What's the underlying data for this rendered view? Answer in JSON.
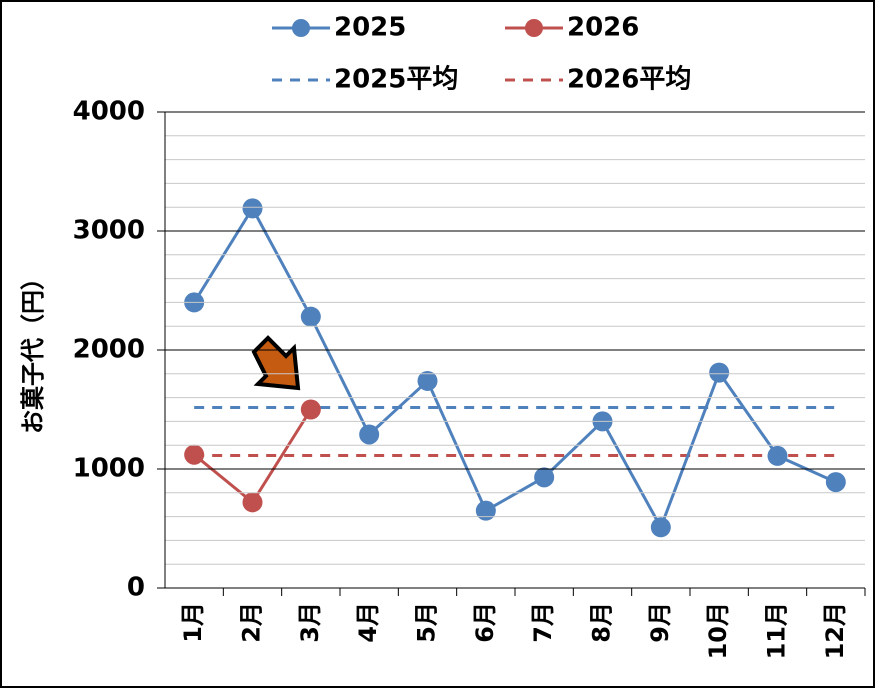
{
  "chart_data": {
    "type": "line",
    "y_label": "お菓子代（円）",
    "categories": [
      "1月",
      "2月",
      "3月",
      "4月",
      "5月",
      "6月",
      "7月",
      "8月",
      "9月",
      "10月",
      "11月",
      "12月"
    ],
    "series": [
      {
        "name": "2025",
        "color": "#4f81bd",
        "dashed": false,
        "markers": true,
        "values": [
          2400,
          3190,
          2280,
          1290,
          1740,
          650,
          930,
          1400,
          510,
          1810,
          1110,
          890
        ]
      },
      {
        "name": "2026",
        "color": "#c0504d",
        "dashed": false,
        "markers": true,
        "values": [
          1120,
          720,
          1500,
          null,
          null,
          null,
          null,
          null,
          null,
          null,
          null,
          null
        ]
      },
      {
        "name": "2025平均",
        "color": "#4f81bd",
        "dashed": true,
        "markers": false,
        "values": [
          1517,
          1517,
          1517,
          1517,
          1517,
          1517,
          1517,
          1517,
          1517,
          1517,
          1517,
          1517
        ]
      },
      {
        "name": "2026平均",
        "color": "#c0504d",
        "dashed": true,
        "markers": false,
        "values": [
          1113,
          1113,
          1113,
          1113,
          1113,
          1113,
          1113,
          1113,
          1113,
          1113,
          1113,
          1113
        ]
      }
    ],
    "ylim": [
      0,
      4000
    ],
    "yticks": [
      0,
      1000,
      2000,
      3000,
      4000
    ],
    "grid": true,
    "minor_grid_step": 200,
    "legend": "top"
  }
}
